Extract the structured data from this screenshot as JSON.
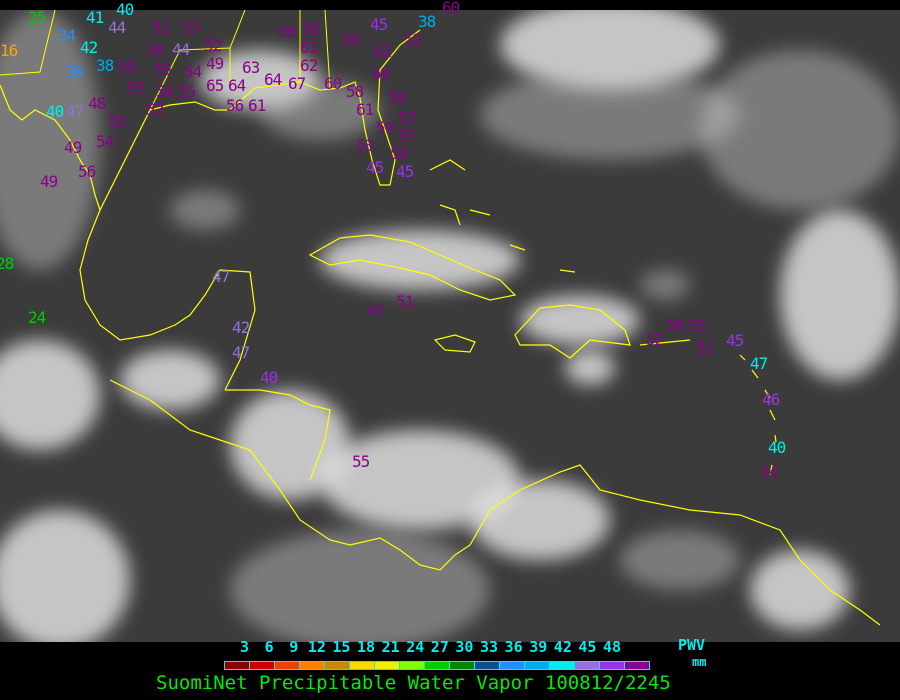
{
  "legend": {
    "ticks": [
      "3",
      "6",
      "9",
      "12",
      "15",
      "18",
      "21",
      "24",
      "27",
      "30",
      "33",
      "36",
      "39",
      "42",
      "45",
      "48"
    ],
    "unit_top": "PWV",
    "unit_bottom": "mm",
    "colors": [
      "#8b0000",
      "#cc0000",
      "#f04000",
      "#ff8000",
      "#cc8800",
      "#ffd700",
      "#f0f000",
      "#80ff00",
      "#00cc00",
      "#008800",
      "#104e8b",
      "#1e90ff",
      "#00aaee",
      "#00eeee",
      "#9370db",
      "#9a30ee",
      "#8b008b"
    ]
  },
  "title": "SuomiNet Precipitable Water Vapor 100812/2245",
  "coastline_color": "#ffff00",
  "stations": [
    {
      "value": "25",
      "color": "#00cc00"
    },
    {
      "value": "34",
      "color": "#1e90ff"
    },
    {
      "value": "41",
      "color": "#00eeee"
    },
    {
      "value": "40",
      "color": "#00eeee"
    },
    {
      "value": "44",
      "color": "#9370db"
    },
    {
      "value": "51",
      "color": "#8b008b"
    },
    {
      "value": "53",
      "color": "#8b008b"
    },
    {
      "value": "16",
      "color": "#ffa500"
    },
    {
      "value": "42",
      "color": "#00eeee"
    },
    {
      "value": "38",
      "color": "#00aaee"
    },
    {
      "value": "36",
      "color": "#1e90ff"
    },
    {
      "value": "50",
      "color": "#8b008b"
    },
    {
      "value": "50",
      "color": "#8b008b"
    },
    {
      "value": "55",
      "color": "#8b008b"
    },
    {
      "value": "44",
      "color": "#9370db"
    },
    {
      "value": "52",
      "color": "#8b008b"
    },
    {
      "value": "49",
      "color": "#8b008b"
    },
    {
      "value": "54",
      "color": "#8b008b"
    },
    {
      "value": "63",
      "color": "#8b008b"
    },
    {
      "value": "53",
      "color": "#8b008b"
    },
    {
      "value": "54",
      "color": "#8b008b"
    },
    {
      "value": "55",
      "color": "#8b008b"
    },
    {
      "value": "52",
      "color": "#8b008b"
    },
    {
      "value": "65",
      "color": "#8b008b"
    },
    {
      "value": "64",
      "color": "#8b008b"
    },
    {
      "value": "64",
      "color": "#8b008b"
    },
    {
      "value": "67",
      "color": "#8b008b"
    },
    {
      "value": "56",
      "color": "#8b008b"
    },
    {
      "value": "56",
      "color": "#8b008b"
    },
    {
      "value": "61",
      "color": "#8b008b"
    },
    {
      "value": "62",
      "color": "#8b008b"
    },
    {
      "value": "59",
      "color": "#8b008b"
    },
    {
      "value": "62",
      "color": "#8b008b"
    },
    {
      "value": "45",
      "color": "#9a30ee"
    },
    {
      "value": "38",
      "color": "#00aaee"
    },
    {
      "value": "52",
      "color": "#8b008b"
    },
    {
      "value": "60",
      "color": "#8b008b"
    },
    {
      "value": "58",
      "color": "#8b008b"
    },
    {
      "value": "60",
      "color": "#8b008b"
    },
    {
      "value": "61",
      "color": "#8b008b"
    },
    {
      "value": "58",
      "color": "#8b008b"
    },
    {
      "value": "59",
      "color": "#8b008b"
    },
    {
      "value": "57",
      "color": "#8b008b"
    },
    {
      "value": "53",
      "color": "#8b008b"
    },
    {
      "value": "57",
      "color": "#8b008b"
    },
    {
      "value": "53",
      "color": "#8b008b"
    },
    {
      "value": "45",
      "color": "#9a30ee"
    },
    {
      "value": "45",
      "color": "#9a30ee"
    },
    {
      "value": "56",
      "color": "#8b008b"
    },
    {
      "value": "61",
      "color": "#8b008b"
    },
    {
      "value": "40",
      "color": "#00eeee"
    },
    {
      "value": "47",
      "color": "#9370db"
    },
    {
      "value": "48",
      "color": "#8b008b"
    },
    {
      "value": "55",
      "color": "#8b008b"
    },
    {
      "value": "54",
      "color": "#8b008b"
    },
    {
      "value": "49",
      "color": "#8b008b"
    },
    {
      "value": "56",
      "color": "#8b008b"
    },
    {
      "value": "49",
      "color": "#8b008b"
    },
    {
      "value": "60",
      "color": "#8b008b"
    },
    {
      "value": "28",
      "color": "#00cc00"
    },
    {
      "value": "24",
      "color": "#00cc00"
    },
    {
      "value": "47",
      "color": "#9370db"
    },
    {
      "value": "42",
      "color": "#9370db"
    },
    {
      "value": "47",
      "color": "#9370db"
    },
    {
      "value": "40",
      "color": "#9a30ee"
    },
    {
      "value": "55",
      "color": "#8b008b"
    },
    {
      "value": "42",
      "color": "#8b008b"
    },
    {
      "value": "51",
      "color": "#8b008b"
    },
    {
      "value": "52",
      "color": "#8b008b"
    },
    {
      "value": "58",
      "color": "#8b008b"
    },
    {
      "value": "55",
      "color": "#8b008b"
    },
    {
      "value": "51",
      "color": "#8b008b"
    },
    {
      "value": "45",
      "color": "#9a30ee"
    },
    {
      "value": "47",
      "color": "#00eeee"
    },
    {
      "value": "46",
      "color": "#9a30ee"
    },
    {
      "value": "40",
      "color": "#00eeee"
    },
    {
      "value": "54",
      "color": "#8b008b"
    }
  ]
}
